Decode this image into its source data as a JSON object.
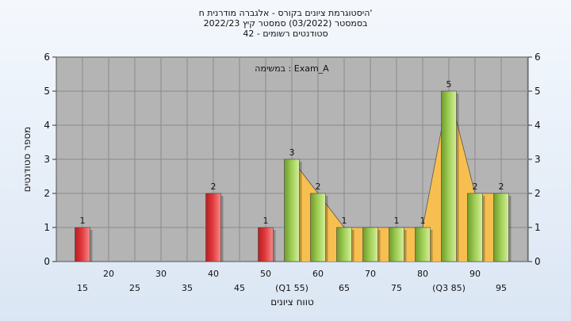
{
  "chart_data": {
    "type": "bar",
    "title_lines": [
      "היסטוגרמת ציונים בקורס - אלגברה מודרנית ח'",
      "בסמסטר  (03/2022)  סמסטר קיץ  2022/23",
      "סטודנטים רשומים - 42"
    ],
    "annotation": "במשימה : Exam_A",
    "xlabel": "טווח ציונים",
    "ylabel": "מספר סטודנטים",
    "ylim": [
      0,
      6
    ],
    "yticks": [
      0,
      1,
      2,
      3,
      4,
      5,
      6
    ],
    "categories": [
      15,
      20,
      25,
      30,
      35,
      40,
      45,
      50,
      55,
      60,
      65,
      70,
      75,
      80,
      85,
      90,
      95
    ],
    "tick_labels": [
      "15",
      "20",
      "25",
      "30",
      "35",
      "40",
      "45",
      "50",
      "(Q1 55)",
      "60",
      "65",
      "70",
      "75",
      "80",
      "(Q3 85)",
      "90",
      "95"
    ],
    "values": [
      1,
      0,
      0,
      0,
      0,
      2,
      0,
      1,
      3,
      2,
      1,
      1,
      1,
      1,
      5,
      2,
      2
    ],
    "data_labels": [
      "1",
      "",
      "",
      "",
      "",
      "2",
      "",
      "1",
      "3",
      "2",
      "1",
      "",
      "1",
      "1",
      "5",
      "2",
      "2"
    ],
    "colors": [
      "red",
      "red",
      "red",
      "red",
      "red",
      "red",
      "red",
      "red",
      "green",
      "green",
      "green",
      "green",
      "green",
      "green",
      "green",
      "green",
      "green"
    ],
    "palette": {
      "red": "#e0393c",
      "green": "#9ccc52",
      "area": "#fbc04a",
      "plot_bg": "#b4b4b4",
      "grid": "#8a8a8a"
    },
    "grid": true
  }
}
